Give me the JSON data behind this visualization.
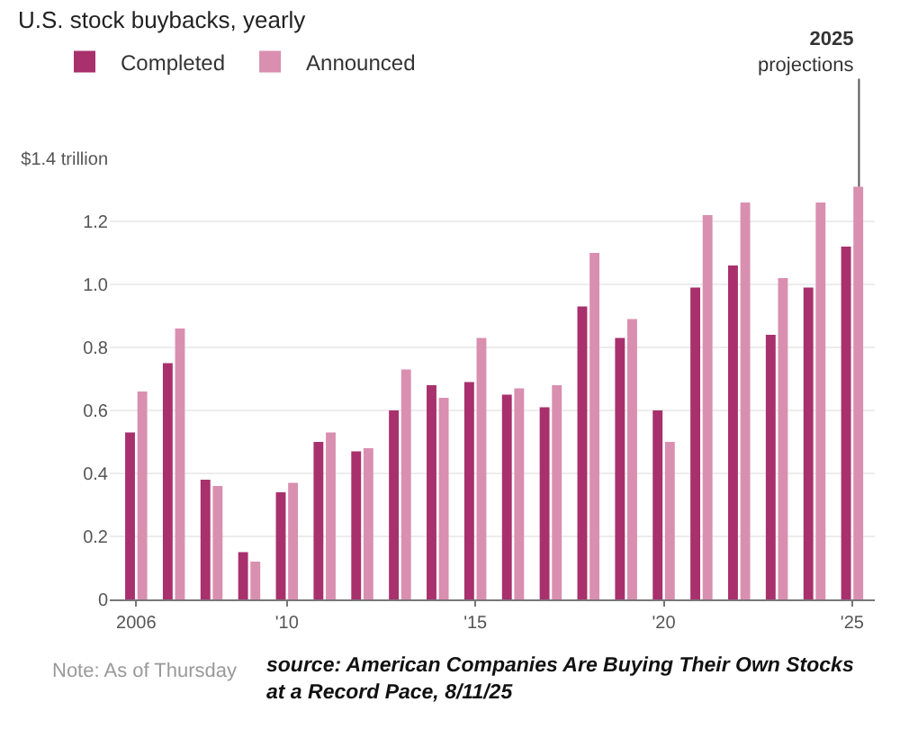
{
  "chart_data": {
    "type": "bar",
    "title": "U.S. stock buybacks, yearly",
    "categories": [
      "2006",
      null,
      null,
      null,
      "'10",
      null,
      null,
      null,
      null,
      "'15",
      null,
      null,
      null,
      null,
      "'20",
      null,
      null,
      null,
      null,
      "'25"
    ],
    "series": [
      {
        "name": "Completed",
        "color": "#a8306c",
        "values": [
          0.53,
          0.75,
          0.38,
          0.15,
          0.34,
          0.5,
          0.47,
          0.6,
          0.68,
          0.69,
          0.65,
          0.61,
          0.93,
          0.83,
          0.6,
          0.99,
          1.06,
          0.84,
          0.99,
          1.12
        ]
      },
      {
        "name": "Announced",
        "color": "#d98fb0",
        "values": [
          0.66,
          0.86,
          0.36,
          0.12,
          0.37,
          0.53,
          0.48,
          0.73,
          0.64,
          0.83,
          0.67,
          0.68,
          1.1,
          0.89,
          0.5,
          1.22,
          1.26,
          1.02,
          1.26,
          1.31
        ]
      }
    ],
    "ylim": [
      0,
      1.4
    ],
    "yticks": [
      0,
      0.2,
      0.4,
      0.6,
      0.8,
      {
        "value": 1,
        "label": "1.0"
      },
      1.2,
      {
        "value": 1.4,
        "label": "$1.4 trillion"
      }
    ],
    "grid": "y",
    "legend": "top left",
    "annotations": [
      {
        "text": "2025 projections",
        "x": "'25",
        "y": 1.31
      },
      "Note: As of Thursday",
      "source: American Companies Are Buying Their Own Stocks at a Record Pace, 8/11/25"
    ]
  }
}
